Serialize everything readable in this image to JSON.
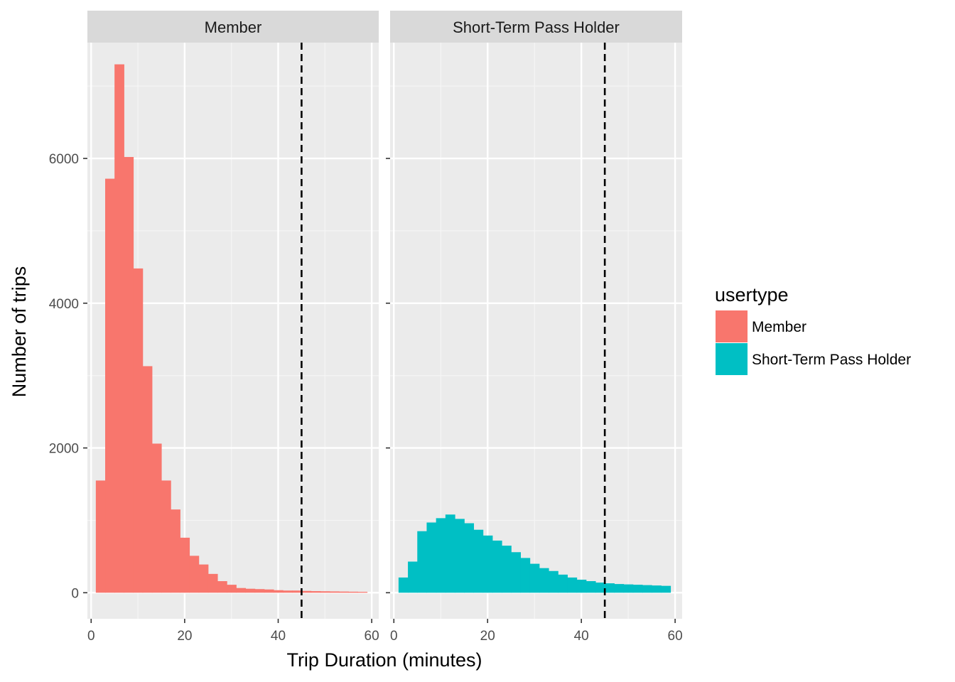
{
  "chart_data": {
    "type": "bar",
    "subtype": "faceted-histogram",
    "xlabel": "Trip Duration (minutes)",
    "ylabel": "Number of trips",
    "xlim": [
      -0.8,
      61.5
    ],
    "ylim": [
      -360,
      7600
    ],
    "x_ticks": [
      0,
      20,
      40,
      60
    ],
    "y_ticks": [
      0,
      2000,
      4000,
      6000
    ],
    "bin_width": 2,
    "vline_x": 45,
    "vline_style": "dashed",
    "grid": true,
    "legend": {
      "title": "usertype",
      "position": "right",
      "entries": [
        "Member",
        "Short-Term Pass Holder"
      ]
    },
    "facets": [
      {
        "name": "Member",
        "color": "#F8766D",
        "bins": [
          {
            "x0": 1,
            "x1": 3,
            "count": 1550
          },
          {
            "x0": 3,
            "x1": 5,
            "count": 5720
          },
          {
            "x0": 5,
            "x1": 7,
            "count": 7300
          },
          {
            "x0": 7,
            "x1": 9,
            "count": 6020
          },
          {
            "x0": 9,
            "x1": 11,
            "count": 4480
          },
          {
            "x0": 11,
            "x1": 13,
            "count": 3130
          },
          {
            "x0": 13,
            "x1": 15,
            "count": 2060
          },
          {
            "x0": 15,
            "x1": 17,
            "count": 1550
          },
          {
            "x0": 17,
            "x1": 19,
            "count": 1150
          },
          {
            "x0": 19,
            "x1": 21,
            "count": 760
          },
          {
            "x0": 21,
            "x1": 23,
            "count": 510
          },
          {
            "x0": 23,
            "x1": 25,
            "count": 390
          },
          {
            "x0": 25,
            "x1": 27,
            "count": 260
          },
          {
            "x0": 27,
            "x1": 29,
            "count": 160
          },
          {
            "x0": 29,
            "x1": 31,
            "count": 110
          },
          {
            "x0": 31,
            "x1": 33,
            "count": 65
          },
          {
            "x0": 33,
            "x1": 35,
            "count": 55
          },
          {
            "x0": 35,
            "x1": 37,
            "count": 50
          },
          {
            "x0": 37,
            "x1": 39,
            "count": 45
          },
          {
            "x0": 39,
            "x1": 41,
            "count": 35
          },
          {
            "x0": 41,
            "x1": 43,
            "count": 30
          },
          {
            "x0": 43,
            "x1": 45,
            "count": 30
          },
          {
            "x0": 45,
            "x1": 47,
            "count": 25
          },
          {
            "x0": 47,
            "x1": 49,
            "count": 22
          },
          {
            "x0": 49,
            "x1": 51,
            "count": 20
          },
          {
            "x0": 51,
            "x1": 53,
            "count": 18
          },
          {
            "x0": 53,
            "x1": 55,
            "count": 16
          },
          {
            "x0": 55,
            "x1": 57,
            "count": 14
          },
          {
            "x0": 57,
            "x1": 59,
            "count": 12
          }
        ]
      },
      {
        "name": "Short-Term Pass Holder",
        "color": "#00BFC4",
        "bins": [
          {
            "x0": 1,
            "x1": 3,
            "count": 210
          },
          {
            "x0": 3,
            "x1": 5,
            "count": 430
          },
          {
            "x0": 5,
            "x1": 7,
            "count": 850
          },
          {
            "x0": 7,
            "x1": 9,
            "count": 970
          },
          {
            "x0": 9,
            "x1": 11,
            "count": 1030
          },
          {
            "x0": 11,
            "x1": 13,
            "count": 1080
          },
          {
            "x0": 13,
            "x1": 15,
            "count": 1020
          },
          {
            "x0": 15,
            "x1": 17,
            "count": 960
          },
          {
            "x0": 17,
            "x1": 19,
            "count": 870
          },
          {
            "x0": 19,
            "x1": 21,
            "count": 790
          },
          {
            "x0": 21,
            "x1": 23,
            "count": 720
          },
          {
            "x0": 23,
            "x1": 25,
            "count": 650
          },
          {
            "x0": 25,
            "x1": 27,
            "count": 560
          },
          {
            "x0": 27,
            "x1": 29,
            "count": 480
          },
          {
            "x0": 29,
            "x1": 31,
            "count": 400
          },
          {
            "x0": 31,
            "x1": 33,
            "count": 340
          },
          {
            "x0": 33,
            "x1": 35,
            "count": 300
          },
          {
            "x0": 35,
            "x1": 37,
            "count": 250
          },
          {
            "x0": 37,
            "x1": 39,
            "count": 210
          },
          {
            "x0": 39,
            "x1": 41,
            "count": 180
          },
          {
            "x0": 41,
            "x1": 43,
            "count": 160
          },
          {
            "x0": 43,
            "x1": 45,
            "count": 140
          },
          {
            "x0": 45,
            "x1": 47,
            "count": 130
          },
          {
            "x0": 47,
            "x1": 49,
            "count": 120
          },
          {
            "x0": 49,
            "x1": 51,
            "count": 115
          },
          {
            "x0": 51,
            "x1": 53,
            "count": 110
          },
          {
            "x0": 53,
            "x1": 55,
            "count": 105
          },
          {
            "x0": 55,
            "x1": 57,
            "count": 100
          },
          {
            "x0": 57,
            "x1": 59,
            "count": 95
          }
        ]
      }
    ]
  }
}
